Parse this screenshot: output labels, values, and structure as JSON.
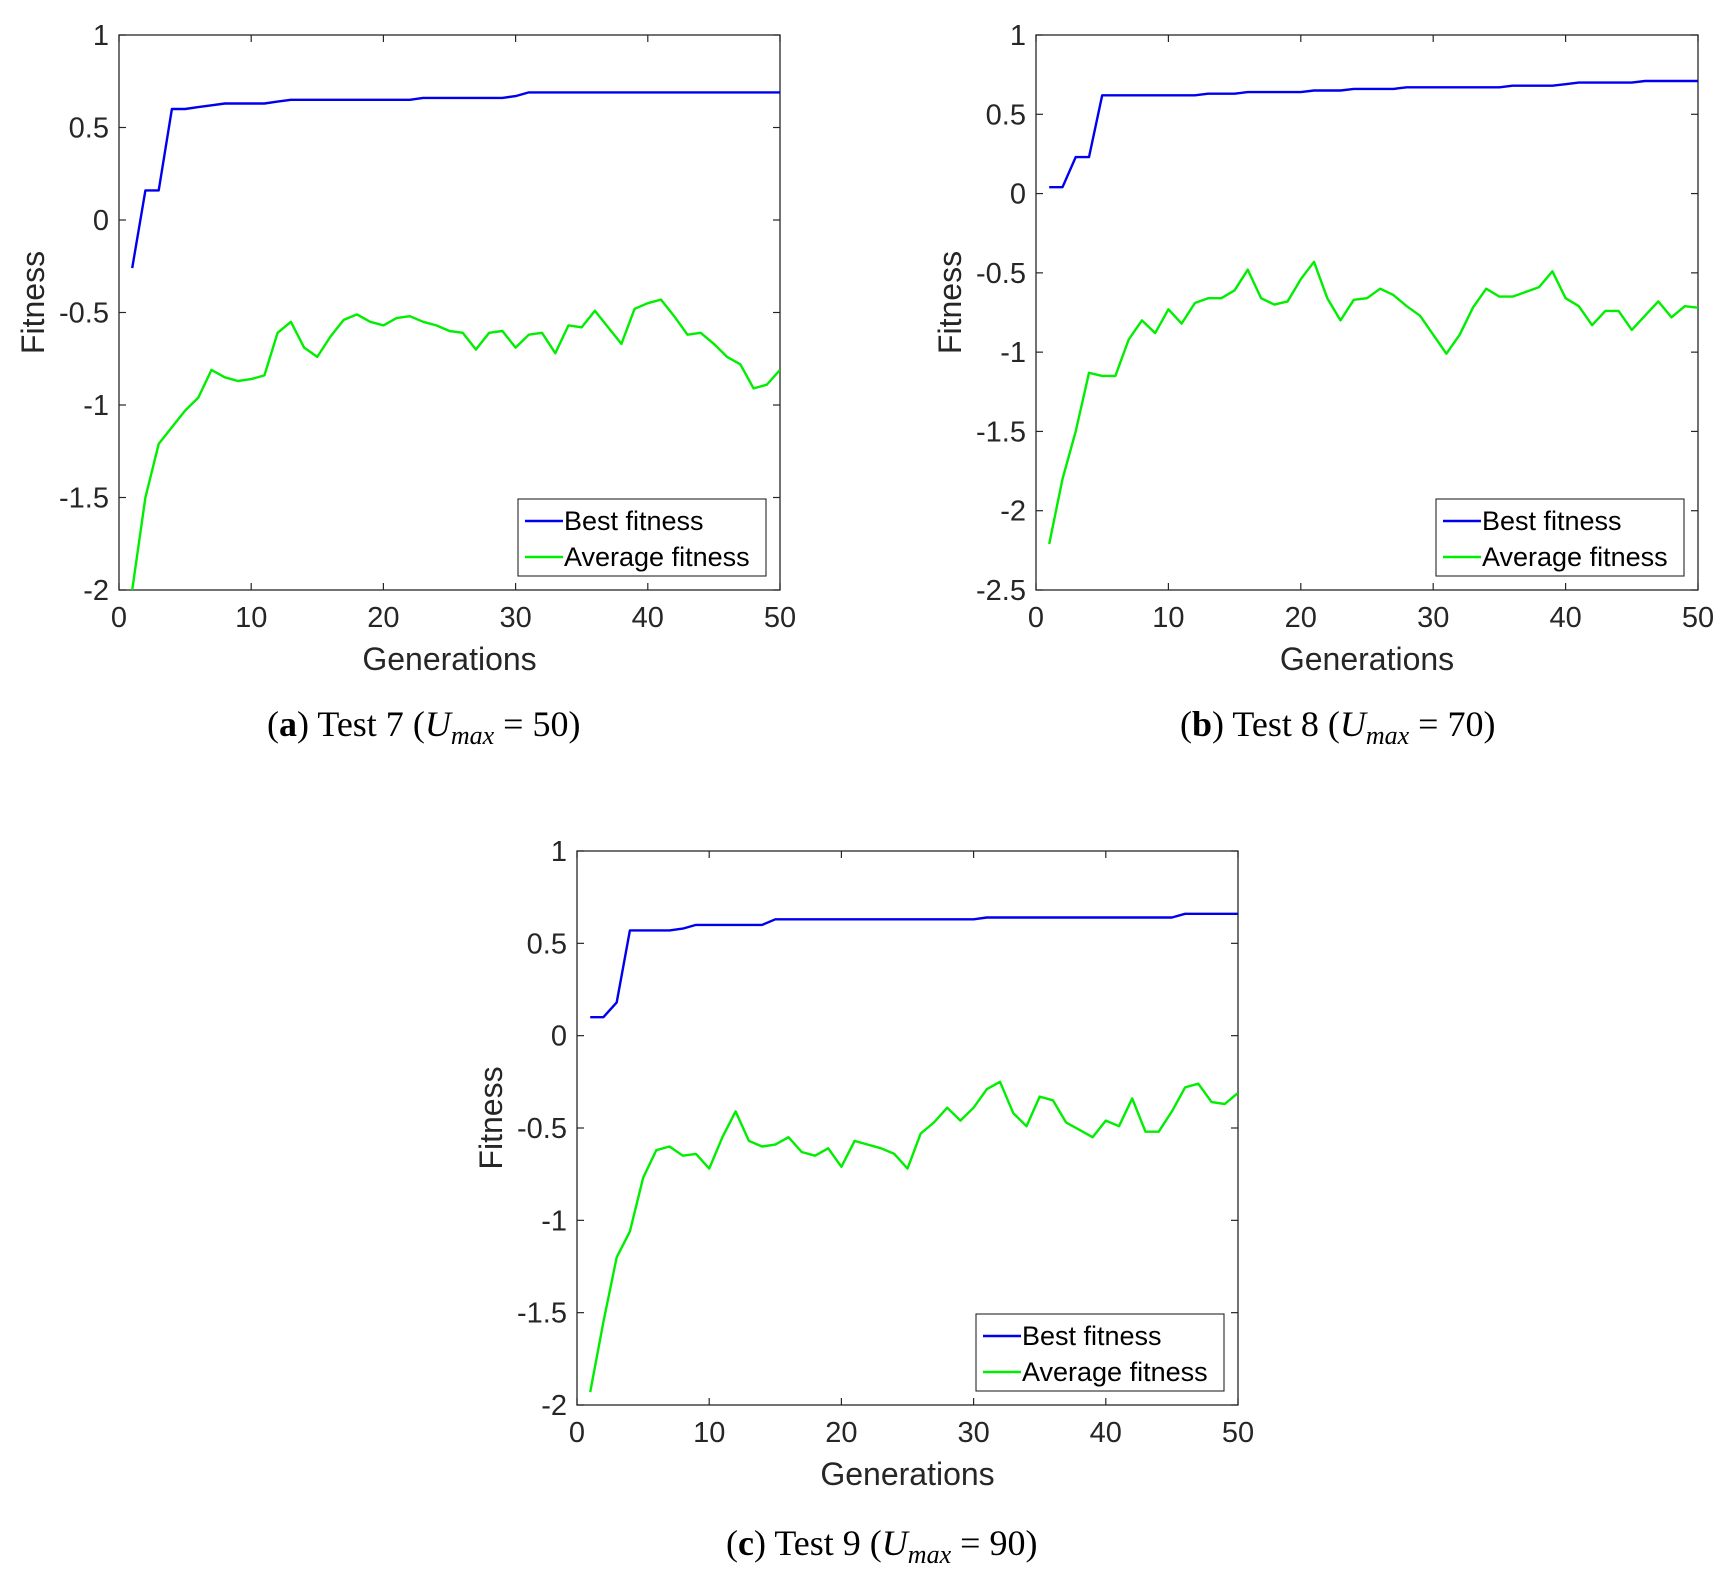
{
  "chart_data": [
    {
      "id": "a",
      "type": "line",
      "caption": {
        "tag": "a",
        "text": "Test 7",
        "var": "U",
        "sub": "max",
        "value": "50"
      },
      "xlabel": "Generations",
      "ylabel": "Fitness",
      "xlim": [
        0,
        50
      ],
      "ylim": [
        -2,
        1
      ],
      "xticks": [
        0,
        10,
        20,
        30,
        40,
        50
      ],
      "yticks": [
        -2,
        -1.5,
        -1,
        -0.5,
        0,
        0.5,
        1
      ],
      "ytick_labels": [
        "-2",
        "-1.5",
        "-1",
        "-0.5",
        "0",
        "0.5",
        "1"
      ],
      "legend": {
        "position": "bottom-right",
        "entries": [
          "Best fitness",
          "Average fitness"
        ]
      },
      "x": [
        1,
        2,
        3,
        4,
        5,
        6,
        7,
        8,
        9,
        10,
        11,
        12,
        13,
        14,
        15,
        16,
        17,
        18,
        19,
        20,
        21,
        22,
        23,
        24,
        25,
        26,
        27,
        28,
        29,
        30,
        31,
        32,
        33,
        34,
        35,
        36,
        37,
        38,
        39,
        40,
        41,
        42,
        43,
        44,
        45,
        46,
        47,
        48,
        49,
        50
      ],
      "series": [
        {
          "name": "Best fitness",
          "color": "#0000ee",
          "values": [
            -0.26,
            0.16,
            0.16,
            0.6,
            0.6,
            0.61,
            0.62,
            0.63,
            0.63,
            0.63,
            0.63,
            0.64,
            0.65,
            0.65,
            0.65,
            0.65,
            0.65,
            0.65,
            0.65,
            0.65,
            0.65,
            0.65,
            0.66,
            0.66,
            0.66,
            0.66,
            0.66,
            0.66,
            0.66,
            0.67,
            0.69,
            0.69,
            0.69,
            0.69,
            0.69,
            0.69,
            0.69,
            0.69,
            0.69,
            0.69,
            0.69,
            0.69,
            0.69,
            0.69,
            0.69,
            0.69,
            0.69,
            0.69,
            0.69,
            0.69
          ]
        },
        {
          "name": "Average fitness",
          "color": "#00ee00",
          "values": [
            -2.0,
            -1.5,
            -1.21,
            -1.12,
            -1.03,
            -0.96,
            -0.81,
            -0.85,
            -0.87,
            -0.86,
            -0.84,
            -0.61,
            -0.55,
            -0.69,
            -0.74,
            -0.63,
            -0.54,
            -0.51,
            -0.55,
            -0.57,
            -0.53,
            -0.52,
            -0.55,
            -0.57,
            -0.6,
            -0.61,
            -0.7,
            -0.61,
            -0.6,
            -0.69,
            -0.62,
            -0.61,
            -0.72,
            -0.57,
            -0.58,
            -0.49,
            -0.58,
            -0.67,
            -0.48,
            -0.45,
            -0.43,
            -0.52,
            -0.62,
            -0.61,
            -0.67,
            -0.74,
            -0.78,
            -0.91,
            -0.89,
            -0.81
          ]
        }
      ]
    },
    {
      "id": "b",
      "type": "line",
      "caption": {
        "tag": "b",
        "text": "Test 8",
        "var": "U",
        "sub": "max",
        "value": "70"
      },
      "xlabel": "Generations",
      "ylabel": "Fitness",
      "xlim": [
        0,
        50
      ],
      "ylim": [
        -2.5,
        1
      ],
      "xticks": [
        0,
        10,
        20,
        30,
        40,
        50
      ],
      "yticks": [
        -2.5,
        -2,
        -1.5,
        -1,
        -0.5,
        0,
        0.5,
        1
      ],
      "ytick_labels": [
        "-2.5",
        "-2",
        "-1.5",
        "-1",
        "-0.5",
        "0",
        "0.5",
        "1"
      ],
      "legend": {
        "position": "bottom-right",
        "entries": [
          "Best fitness",
          "Average fitness"
        ]
      },
      "x": [
        1,
        2,
        3,
        4,
        5,
        6,
        7,
        8,
        9,
        10,
        11,
        12,
        13,
        14,
        15,
        16,
        17,
        18,
        19,
        20,
        21,
        22,
        23,
        24,
        25,
        26,
        27,
        28,
        29,
        30,
        31,
        32,
        33,
        34,
        35,
        36,
        37,
        38,
        39,
        40,
        41,
        42,
        43,
        44,
        45,
        46,
        47,
        48,
        49,
        50
      ],
      "series": [
        {
          "name": "Best fitness",
          "color": "#0000ee",
          "values": [
            0.04,
            0.04,
            0.23,
            0.23,
            0.62,
            0.62,
            0.62,
            0.62,
            0.62,
            0.62,
            0.62,
            0.62,
            0.63,
            0.63,
            0.63,
            0.64,
            0.64,
            0.64,
            0.64,
            0.64,
            0.65,
            0.65,
            0.65,
            0.66,
            0.66,
            0.66,
            0.66,
            0.67,
            0.67,
            0.67,
            0.67,
            0.67,
            0.67,
            0.67,
            0.67,
            0.68,
            0.68,
            0.68,
            0.68,
            0.69,
            0.7,
            0.7,
            0.7,
            0.7,
            0.7,
            0.71,
            0.71,
            0.71,
            0.71,
            0.71
          ]
        },
        {
          "name": "Average fitness",
          "color": "#00ee00",
          "values": [
            -2.21,
            -1.8,
            -1.5,
            -1.13,
            -1.15,
            -1.15,
            -0.92,
            -0.8,
            -0.88,
            -0.73,
            -0.82,
            -0.69,
            -0.66,
            -0.66,
            -0.61,
            -0.48,
            -0.66,
            -0.7,
            -0.68,
            -0.54,
            -0.43,
            -0.66,
            -0.8,
            -0.67,
            -0.66,
            -0.6,
            -0.64,
            -0.71,
            -0.77,
            -0.89,
            -1.01,
            -0.89,
            -0.72,
            -0.6,
            -0.65,
            -0.65,
            -0.62,
            -0.59,
            -0.49,
            -0.66,
            -0.71,
            -0.83,
            -0.74,
            -0.74,
            -0.86,
            -0.77,
            -0.68,
            -0.78,
            -0.71,
            -0.72
          ]
        }
      ]
    },
    {
      "id": "c",
      "type": "line",
      "caption": {
        "tag": "c",
        "text": "Test 9",
        "var": "U",
        "sub": "max",
        "value": "90"
      },
      "xlabel": "Generations",
      "ylabel": "Fitness",
      "xlim": [
        0,
        50
      ],
      "ylim": [
        -2,
        1
      ],
      "xticks": [
        0,
        10,
        20,
        30,
        40,
        50
      ],
      "yticks": [
        -2,
        -1.5,
        -1,
        -0.5,
        0,
        0.5,
        1
      ],
      "ytick_labels": [
        "-2",
        "-1.5",
        "-1",
        "-0.5",
        "0",
        "0.5",
        "1"
      ],
      "legend": {
        "position": "bottom-right",
        "entries": [
          "Best fitness",
          "Average fitness"
        ]
      },
      "x": [
        1,
        2,
        3,
        4,
        5,
        6,
        7,
        8,
        9,
        10,
        11,
        12,
        13,
        14,
        15,
        16,
        17,
        18,
        19,
        20,
        21,
        22,
        23,
        24,
        25,
        26,
        27,
        28,
        29,
        30,
        31,
        32,
        33,
        34,
        35,
        36,
        37,
        38,
        39,
        40,
        41,
        42,
        43,
        44,
        45,
        46,
        47,
        48,
        49,
        50
      ],
      "series": [
        {
          "name": "Best fitness",
          "color": "#0000ee",
          "values": [
            0.1,
            0.1,
            0.18,
            0.57,
            0.57,
            0.57,
            0.57,
            0.58,
            0.6,
            0.6,
            0.6,
            0.6,
            0.6,
            0.6,
            0.63,
            0.63,
            0.63,
            0.63,
            0.63,
            0.63,
            0.63,
            0.63,
            0.63,
            0.63,
            0.63,
            0.63,
            0.63,
            0.63,
            0.63,
            0.63,
            0.64,
            0.64,
            0.64,
            0.64,
            0.64,
            0.64,
            0.64,
            0.64,
            0.64,
            0.64,
            0.64,
            0.64,
            0.64,
            0.64,
            0.64,
            0.66,
            0.66,
            0.66,
            0.66,
            0.66
          ]
        },
        {
          "name": "Average fitness",
          "color": "#00ee00",
          "values": [
            -1.93,
            -1.55,
            -1.2,
            -1.06,
            -0.77,
            -0.62,
            -0.6,
            -0.65,
            -0.64,
            -0.72,
            -0.55,
            -0.41,
            -0.57,
            -0.6,
            -0.59,
            -0.55,
            -0.63,
            -0.65,
            -0.61,
            -0.71,
            -0.57,
            -0.59,
            -0.61,
            -0.64,
            -0.72,
            -0.53,
            -0.47,
            -0.39,
            -0.46,
            -0.39,
            -0.29,
            -0.25,
            -0.42,
            -0.49,
            -0.33,
            -0.35,
            -0.47,
            -0.51,
            -0.55,
            -0.46,
            -0.49,
            -0.34,
            -0.52,
            -0.52,
            -0.41,
            -0.28,
            -0.26,
            -0.36,
            -0.37,
            -0.31
          ]
        }
      ]
    }
  ]
}
